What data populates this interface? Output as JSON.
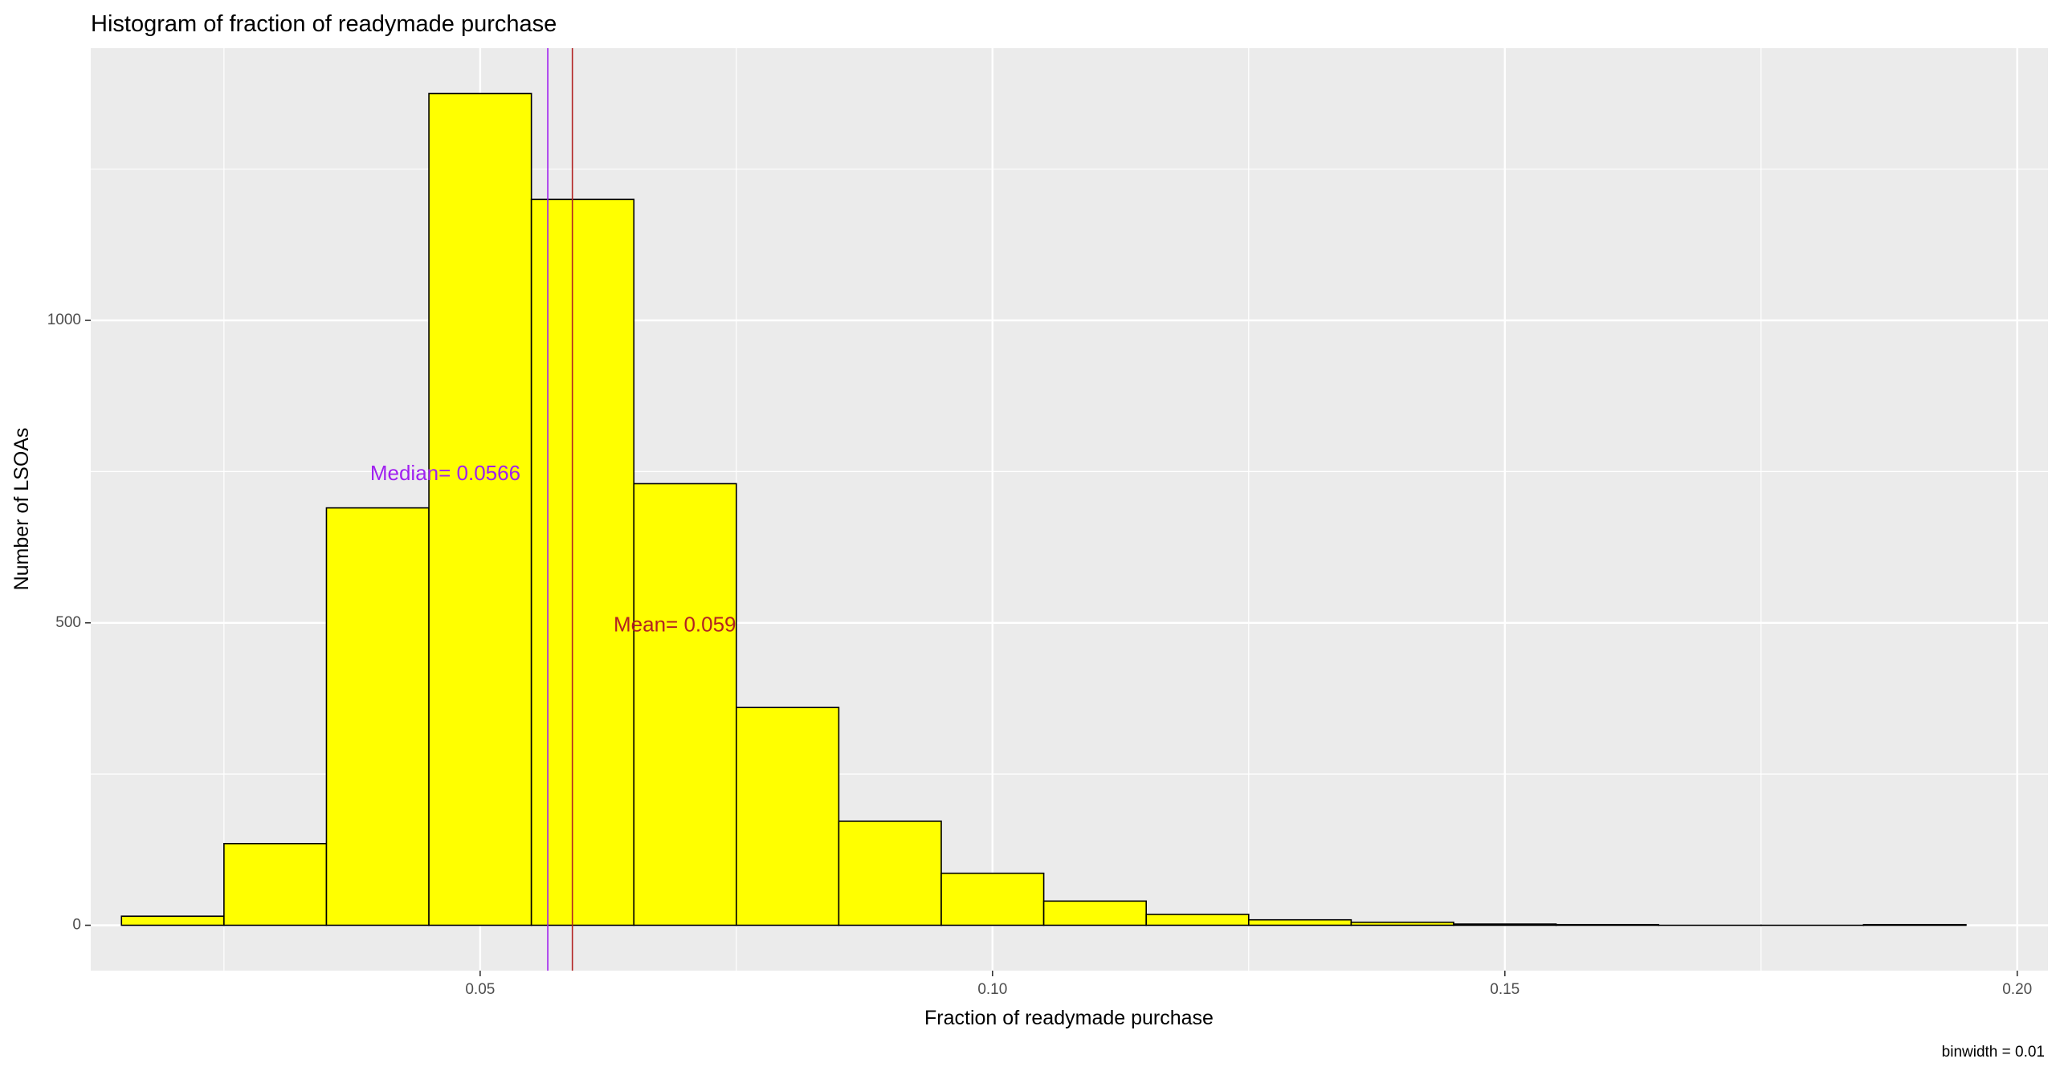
{
  "chart_data": {
    "type": "bar",
    "title": "Histogram of fraction of readymade purchase",
    "xlabel": "Fraction of readymade purchase",
    "ylabel": "Number of LSOAs",
    "caption": "binwidth = 0.01",
    "binwidth": 0.01,
    "xlim": [
      0.012,
      0.203
    ],
    "ylim": [
      -75,
      1450
    ],
    "x_ticks": [
      0.05,
      0.1,
      0.15,
      0.2
    ],
    "x_tick_labels": [
      "0.05",
      "0.10",
      "0.15",
      "0.20"
    ],
    "y_ticks": [
      0,
      500,
      1000
    ],
    "y_tick_labels": [
      "0",
      "500",
      "1000"
    ],
    "bin_centers": [
      0.02,
      0.03,
      0.04,
      0.05,
      0.06,
      0.07,
      0.08,
      0.09,
      0.1,
      0.11,
      0.12,
      0.13,
      0.14,
      0.15,
      0.16,
      0.17,
      0.18,
      0.19
    ],
    "values": [
      15,
      135,
      690,
      1375,
      1200,
      730,
      360,
      172,
      86,
      40,
      18,
      9,
      5,
      2,
      1,
      0,
      0,
      1
    ],
    "grid": true,
    "bar_fill": "#ffff00",
    "bar_stroke": "#000000",
    "panel_background": "#ebebeb",
    "reference_lines": [
      {
        "label": "Median=  0.0566",
        "value": 0.0566,
        "color": "#a020f0",
        "label_x": 0.0466,
        "label_y": 745
      },
      {
        "label": "Mean=  0.059",
        "value": 0.059,
        "color": "#b22222",
        "label_x": 0.069,
        "label_y": 495
      }
    ]
  }
}
